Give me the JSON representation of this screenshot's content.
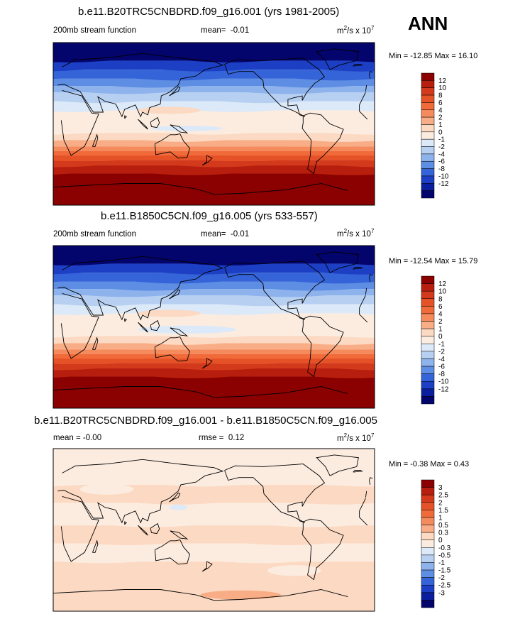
{
  "season": "ANN",
  "panels": [
    {
      "title": "b.e11.B20TRC5CNBDRD.f09_g16.001 (yrs 1981-2005)",
      "left_label": "200mb stream function",
      "mean_label": "mean=",
      "mean_value": "-0.01",
      "units_prefix": "m",
      "units_exp1": "2",
      "units_mid": "/s x 10",
      "units_exp2": "7",
      "min_max": "Min = -12.85 Max =  16.10"
    },
    {
      "title": "b.e11.B1850C5CN.f09_g16.005 (yrs 533-557)",
      "left_label": "200mb stream function",
      "mean_label": "mean=",
      "mean_value": "-0.01",
      "units_prefix": "m",
      "units_exp1": "2",
      "units_mid": "/s x 10",
      "units_exp2": "7",
      "min_max": "Min = -12.54 Max =  15.79"
    },
    {
      "title": "b.e11.B20TRC5CNBDRD.f09_g16.001 - b.e11.B1850C5CN.f09_g16.005",
      "left_label": "mean =  -0.00",
      "rmse_label": "rmse =",
      "rmse_value": "0.12",
      "units_prefix": "m",
      "units_exp1": "2",
      "units_mid": "/s x 10",
      "units_exp2": "7",
      "min_max": "Min = -0.38 Max =  0.43"
    }
  ],
  "chart_data": [
    {
      "type": "heatmap",
      "title": "b.e11.B20TRC5CNBDRD.f09_g16.001 (yrs 1981-2005)",
      "variable": "200mb stream function",
      "mean": -0.01,
      "min": -12.85,
      "max": 16.1,
      "colorbar_levels": [
        12,
        10,
        8,
        6,
        4,
        2,
        1,
        0,
        -1,
        -2,
        -4,
        -6,
        -8,
        -10,
        -12
      ],
      "colorbar_labels": [
        "12",
        "10",
        "8",
        "6",
        "4",
        "2",
        "1",
        "0",
        "-1",
        "-2",
        "-4",
        "-6",
        "-8",
        "-10",
        "-12"
      ],
      "colors": [
        "#8b0000",
        "#b81e0e",
        "#d33a1c",
        "#e65227",
        "#f06a3a",
        "#f58b5c",
        "#f9ad86",
        "#fcd9c2",
        "#fcece0",
        "#dce9f8",
        "#b7d0f2",
        "#8db2ec",
        "#5e8de4",
        "#3564d9",
        "#1c3fc4",
        "#0a1e9e",
        "#04046d"
      ],
      "lat_bands": [
        {
          "lat_top": 90,
          "lat_bottom": 70,
          "value": -12
        },
        {
          "lat_top": 70,
          "lat_bottom": 60,
          "value": -10
        },
        {
          "lat_top": 60,
          "lat_bottom": 50,
          "value": -8
        },
        {
          "lat_top": 50,
          "lat_bottom": 42,
          "value": -6
        },
        {
          "lat_top": 42,
          "lat_bottom": 35,
          "value": -4
        },
        {
          "lat_top": 35,
          "lat_bottom": 25,
          "value": -2
        },
        {
          "lat_top": 25,
          "lat_bottom": 15,
          "value": -1
        },
        {
          "lat_top": 15,
          "lat_bottom": -10,
          "value": -0.5
        },
        {
          "lat_top": -10,
          "lat_bottom": -18,
          "value": 0.5
        },
        {
          "lat_top": -18,
          "lat_bottom": -25,
          "value": 1.5
        },
        {
          "lat_top": -25,
          "lat_bottom": -30,
          "value": 3
        },
        {
          "lat_top": -30,
          "lat_bottom": -35,
          "value": 5
        },
        {
          "lat_top": -35,
          "lat_bottom": -40,
          "value": 7
        },
        {
          "lat_top": -40,
          "lat_bottom": -46,
          "value": 9
        },
        {
          "lat_top": -46,
          "lat_bottom": -55,
          "value": 11
        },
        {
          "lat_top": -55,
          "lat_bottom": -90,
          "value": 13
        }
      ],
      "features": [
        {
          "lon": 130,
          "lat": 15,
          "w_deg": 70,
          "h_deg": 8,
          "value": 0.5
        },
        {
          "lon": 150,
          "lat": -5,
          "w_deg": 80,
          "h_deg": 6,
          "value": -1.5
        }
      ]
    },
    {
      "type": "heatmap",
      "title": "b.e11.B1850C5CN.f09_g16.005 (yrs 533-557)",
      "variable": "200mb stream function",
      "mean": -0.01,
      "min": -12.54,
      "max": 15.79,
      "colorbar_levels": [
        12,
        10,
        8,
        6,
        4,
        2,
        1,
        0,
        -1,
        -2,
        -4,
        -6,
        -8,
        -10,
        -12
      ],
      "colorbar_labels": [
        "12",
        "10",
        "8",
        "6",
        "4",
        "2",
        "1",
        "0",
        "-1",
        "-2",
        "-4",
        "-6",
        "-8",
        "-10",
        "-12"
      ],
      "colors": [
        "#8b0000",
        "#b81e0e",
        "#d33a1c",
        "#e65227",
        "#f06a3a",
        "#f58b5c",
        "#f9ad86",
        "#fcd9c2",
        "#fcece0",
        "#dce9f8",
        "#b7d0f2",
        "#8db2ec",
        "#5e8de4",
        "#3564d9",
        "#1c3fc4",
        "#0a1e9e",
        "#04046d"
      ],
      "lat_bands": [
        {
          "lat_top": 90,
          "lat_bottom": 70,
          "value": -12
        },
        {
          "lat_top": 70,
          "lat_bottom": 60,
          "value": -10
        },
        {
          "lat_top": 60,
          "lat_bottom": 50,
          "value": -8
        },
        {
          "lat_top": 50,
          "lat_bottom": 42,
          "value": -6
        },
        {
          "lat_top": 42,
          "lat_bottom": 35,
          "value": -4
        },
        {
          "lat_top": 35,
          "lat_bottom": 25,
          "value": -2
        },
        {
          "lat_top": 25,
          "lat_bottom": 15,
          "value": -1
        },
        {
          "lat_top": 15,
          "lat_bottom": -10,
          "value": -0.5
        },
        {
          "lat_top": -10,
          "lat_bottom": -18,
          "value": 0.5
        },
        {
          "lat_top": -18,
          "lat_bottom": -25,
          "value": 1.5
        },
        {
          "lat_top": -25,
          "lat_bottom": -30,
          "value": 3
        },
        {
          "lat_top": -30,
          "lat_bottom": -35,
          "value": 5
        },
        {
          "lat_top": -35,
          "lat_bottom": -40,
          "value": 7
        },
        {
          "lat_top": -40,
          "lat_bottom": -46,
          "value": 9
        },
        {
          "lat_top": -46,
          "lat_bottom": -55,
          "value": 11
        },
        {
          "lat_top": -55,
          "lat_bottom": -90,
          "value": 13
        }
      ],
      "features": [
        {
          "lon": 130,
          "lat": 15,
          "w_deg": 70,
          "h_deg": 8,
          "value": 0.5
        },
        {
          "lon": 150,
          "lat": -3,
          "w_deg": 110,
          "h_deg": 9,
          "value": -1.5
        }
      ]
    },
    {
      "type": "heatmap",
      "title": "b.e11.B20TRC5CNBDRD.f09_g16.001 - b.e11.B1850C5CN.f09_g16.005",
      "variable": "difference",
      "mean": -0.0,
      "rmse": 0.12,
      "min": -0.38,
      "max": 0.43,
      "colorbar_levels": [
        3,
        2.5,
        2,
        1.5,
        1,
        0.5,
        0.3,
        0,
        -0.3,
        -0.5,
        -1,
        -1.5,
        -2,
        -2.5,
        -3
      ],
      "colorbar_labels": [
        "3",
        "2.5",
        "2",
        "1.5",
        "1",
        "0.5",
        "0.3",
        "0",
        "-0.3",
        "-0.5",
        "-1",
        "-1.5",
        "-2",
        "-2.5",
        "-3"
      ],
      "colors": [
        "#8b0000",
        "#b81e0e",
        "#d33a1c",
        "#e65227",
        "#f06a3a",
        "#f58b5c",
        "#f9ad86",
        "#fcd9c2",
        "#fcece0",
        "#dce9f8",
        "#b7d0f2",
        "#8db2ec",
        "#5e8de4",
        "#3564d9",
        "#1c3fc4",
        "#0a1e9e",
        "#04046d"
      ],
      "lat_bands": [
        {
          "lat_top": 90,
          "lat_bottom": 70,
          "value": -0.1
        },
        {
          "lat_top": 70,
          "lat_bottom": 50,
          "value": -0.1
        },
        {
          "lat_top": 50,
          "lat_bottom": 30,
          "value": 0.1
        },
        {
          "lat_top": 30,
          "lat_bottom": 5,
          "value": -0.1
        },
        {
          "lat_top": 5,
          "lat_bottom": -15,
          "value": 0.1
        },
        {
          "lat_top": -15,
          "lat_bottom": -35,
          "value": -0.1
        },
        {
          "lat_top": -35,
          "lat_bottom": -55,
          "value": 0.1
        },
        {
          "lat_top": -55,
          "lat_bottom": -90,
          "value": 0.1
        }
      ],
      "features": [
        {
          "lon": 140,
          "lat": 25,
          "w_deg": 20,
          "h_deg": 6,
          "value": -0.4
        },
        {
          "lon": 210,
          "lat": -72,
          "w_deg": 90,
          "h_deg": 10,
          "value": 0.4
        },
        {
          "lon": 60,
          "lat": 45,
          "w_deg": 60,
          "h_deg": 12,
          "value": -0.1
        },
        {
          "lon": 270,
          "lat": -45,
          "w_deg": 60,
          "h_deg": 12,
          "value": -0.1
        }
      ]
    }
  ]
}
